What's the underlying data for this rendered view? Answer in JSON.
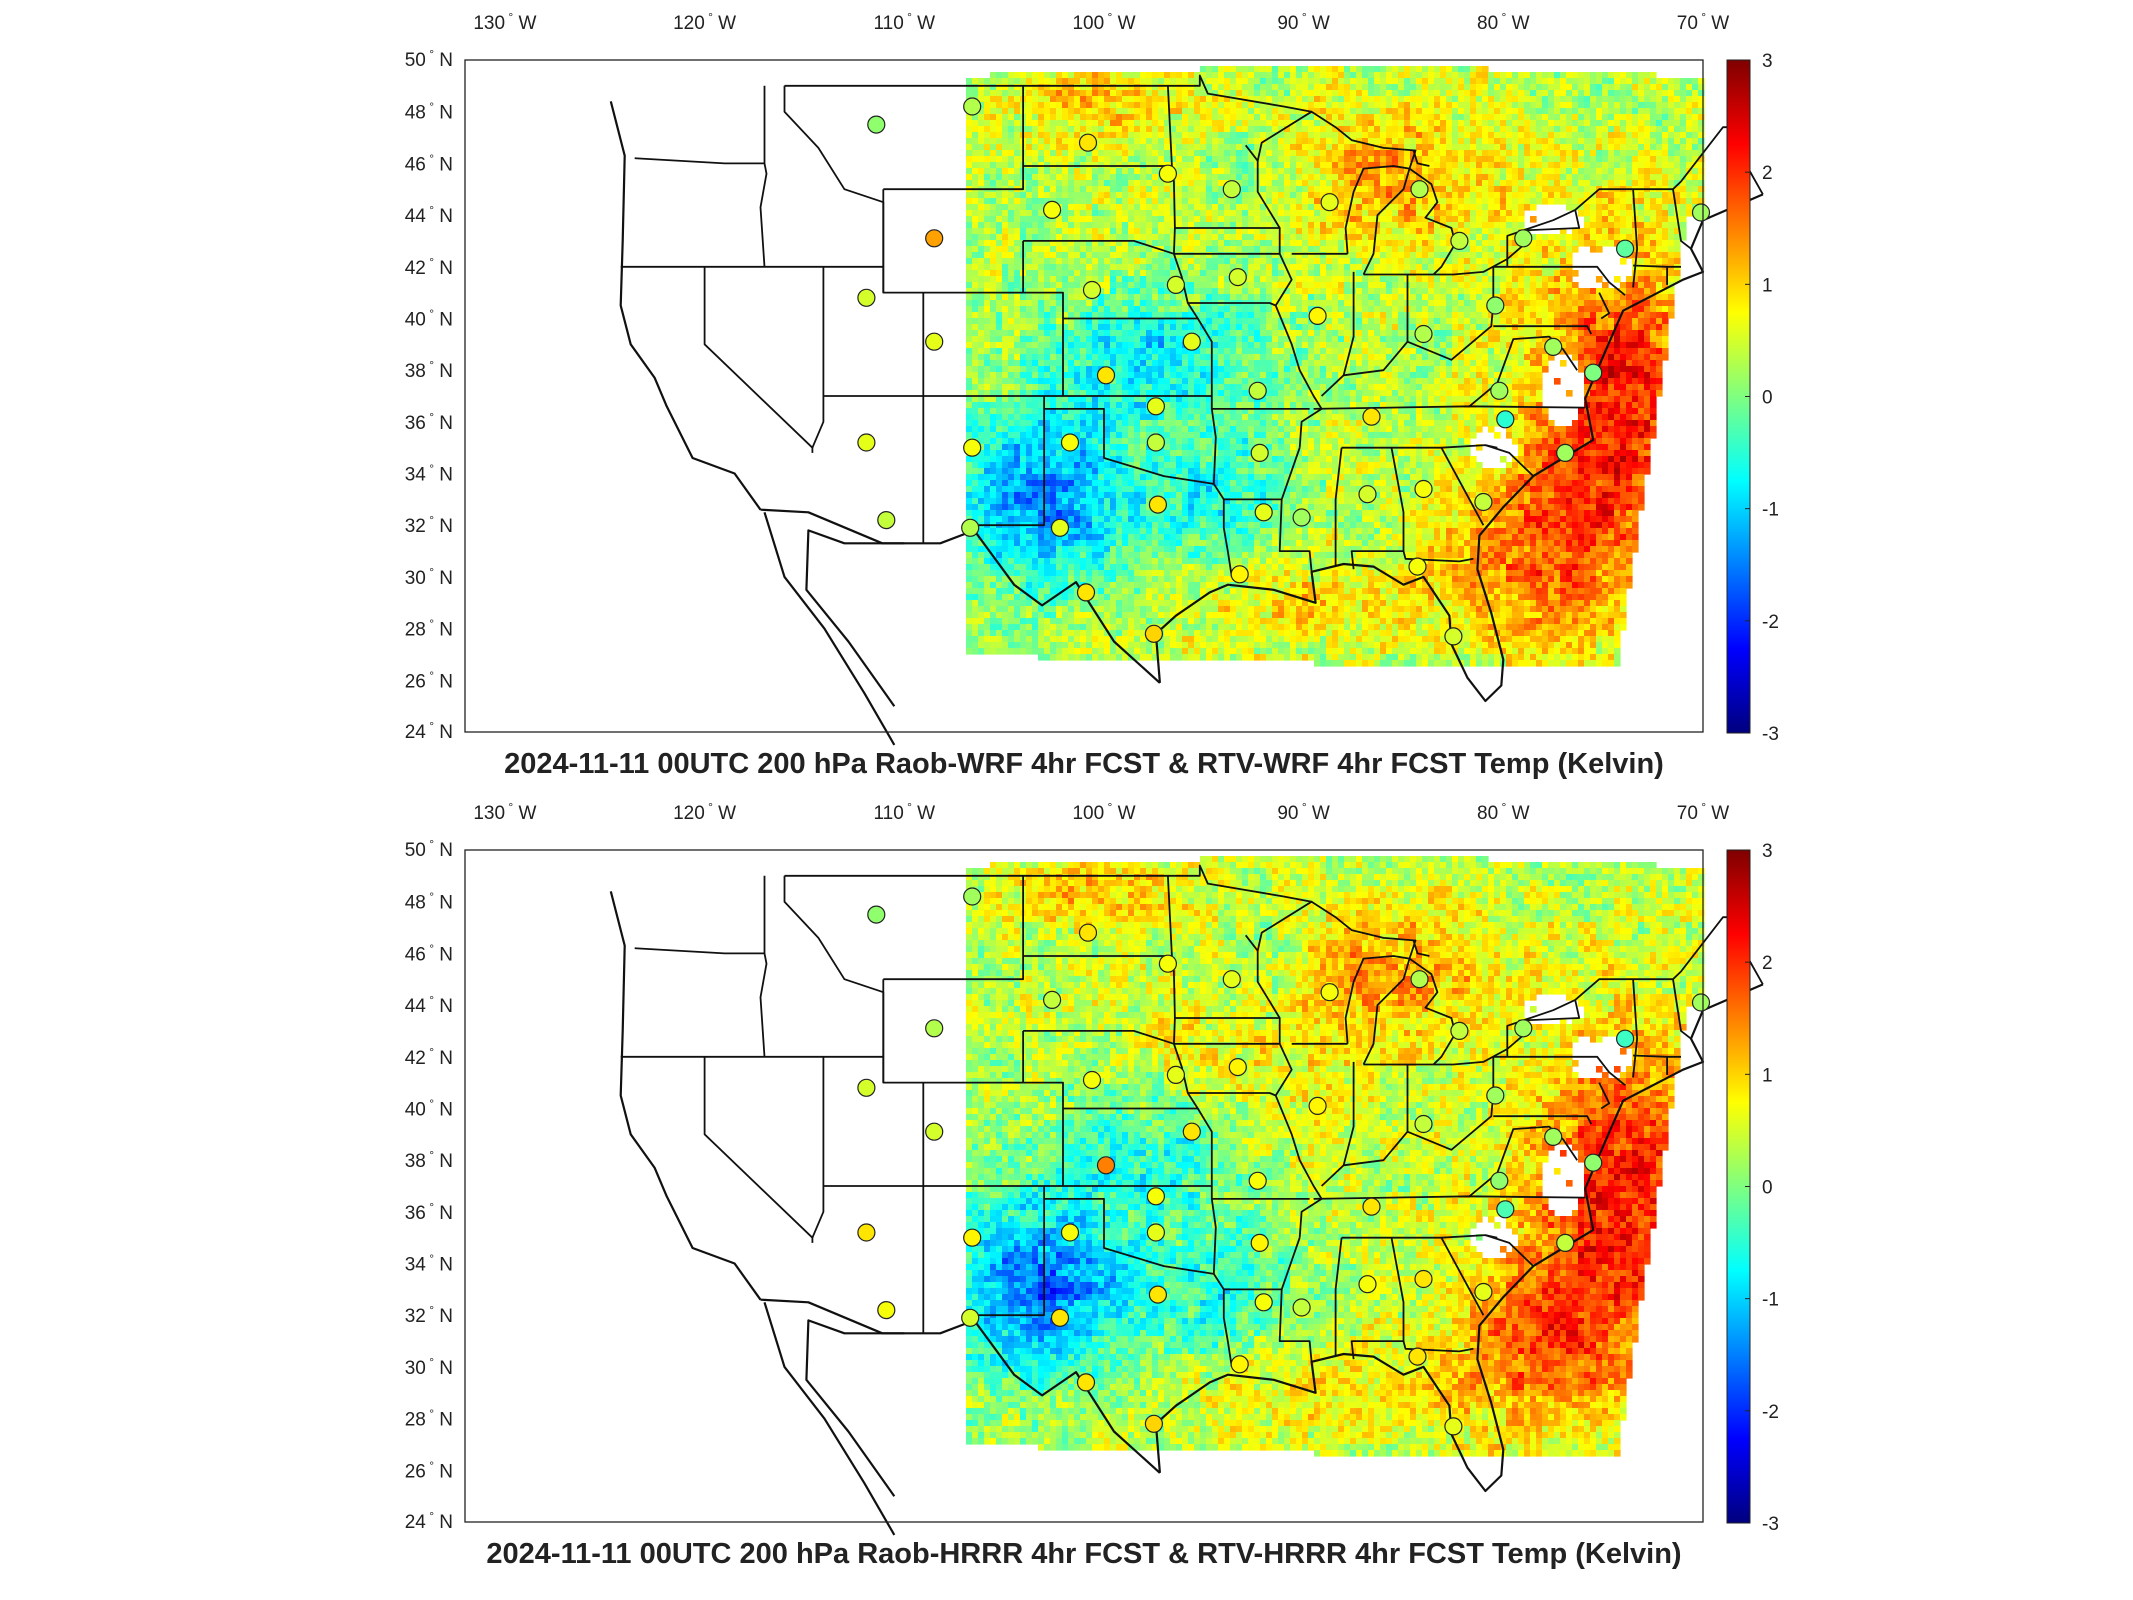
{
  "panels": [
    {
      "title": "2024-11-11 00UTC 200 hPa Raob-WRF 4hr FCST & RTV-WRF 4hr FCST Temp (Kelvin)",
      "lon_ticks": [
        "130",
        "120",
        "110",
        "100",
        "90",
        "80",
        "70"
      ],
      "lon_hemisphere": "W",
      "lat_ticks": [
        "50",
        "48",
        "46",
        "44",
        "42",
        "40",
        "38",
        "36",
        "34",
        "32",
        "30",
        "28",
        "26",
        "24"
      ],
      "lat_hemisphere": "N",
      "degree_symbol": "°",
      "colorbar_ticks": [
        "3",
        "2",
        "1",
        "0",
        "-1",
        "-2",
        "-3"
      ]
    },
    {
      "title": "2024-11-11 00UTC 200 hPa Raob-HRRR 4hr FCST & RTV-HRRR 4hr FCST Temp (Kelvin)",
      "lon_ticks": [
        "130",
        "120",
        "110",
        "100",
        "90",
        "80",
        "70"
      ],
      "lon_hemisphere": "W",
      "lat_ticks": [
        "50",
        "48",
        "46",
        "44",
        "42",
        "40",
        "38",
        "36",
        "34",
        "32",
        "30",
        "28",
        "26",
        "24"
      ],
      "lat_hemisphere": "N",
      "degree_symbol": "°",
      "colorbar_ticks": [
        "3",
        "2",
        "1",
        "0",
        "-1",
        "-2",
        "-3"
      ]
    }
  ],
  "colormap": {
    "name": "jet",
    "range": [
      -3,
      3
    ],
    "stops": [
      "#00007f",
      "#0000ff",
      "#007fff",
      "#00ffff",
      "#7fff7f",
      "#ffff00",
      "#ff7f00",
      "#ff0000",
      "#7f0000"
    ]
  },
  "chart_data": [
    {
      "type": "heatmap",
      "title": "2024-11-11 00UTC 200 hPa Raob-WRF 4hr FCST & RTV-WRF 4hr FCST Temp (Kelvin)",
      "units": "Kelvin",
      "clim": [
        -3,
        3
      ],
      "xlim": [
        -132,
        -70
      ],
      "ylim": [
        24,
        50
      ],
      "raob_stations": [
        {
          "lon": -111.4,
          "lat": 47.5,
          "value": 0.1
        },
        {
          "lon": -106.6,
          "lat": 48.2,
          "value": 0.3
        },
        {
          "lon": -100.8,
          "lat": 46.8,
          "value": 0.9
        },
        {
          "lon": -96.8,
          "lat": 45.6,
          "value": 0.7
        },
        {
          "lon": -93.6,
          "lat": 45.0,
          "value": 0.4
        },
        {
          "lon": -88.7,
          "lat": 44.5,
          "value": 0.6
        },
        {
          "lon": -84.2,
          "lat": 45.0,
          "value": 0.3
        },
        {
          "lon": -82.2,
          "lat": 43.0,
          "value": 0.4
        },
        {
          "lon": -79.0,
          "lat": 43.1,
          "value": 0.2
        },
        {
          "lon": -73.9,
          "lat": 42.7,
          "value": -0.2
        },
        {
          "lon": -70.1,
          "lat": 44.1,
          "value": 0.2
        },
        {
          "lon": -102.6,
          "lat": 44.2,
          "value": 0.7
        },
        {
          "lon": -108.5,
          "lat": 43.1,
          "value": 1.3
        },
        {
          "lon": -111.9,
          "lat": 40.8,
          "value": 0.5
        },
        {
          "lon": -108.5,
          "lat": 39.1,
          "value": 0.6
        },
        {
          "lon": -100.6,
          "lat": 41.1,
          "value": 0.5
        },
        {
          "lon": -96.4,
          "lat": 41.3,
          "value": 0.5
        },
        {
          "lon": -93.3,
          "lat": 41.6,
          "value": 0.5
        },
        {
          "lon": -89.3,
          "lat": 40.1,
          "value": 0.8
        },
        {
          "lon": -84.0,
          "lat": 39.4,
          "value": 0.3
        },
        {
          "lon": -80.4,
          "lat": 40.5,
          "value": 0.1
        },
        {
          "lon": -77.5,
          "lat": 38.9,
          "value": 0.2
        },
        {
          "lon": -75.5,
          "lat": 37.9,
          "value": 0.0
        },
        {
          "lon": -95.6,
          "lat": 39.1,
          "value": 0.6
        },
        {
          "lon": -99.9,
          "lat": 37.8,
          "value": 0.9
        },
        {
          "lon": -97.4,
          "lat": 36.6,
          "value": 0.6
        },
        {
          "lon": -92.3,
          "lat": 37.2,
          "value": 0.4
        },
        {
          "lon": -86.6,
          "lat": 36.2,
          "value": 0.9
        },
        {
          "lon": -80.2,
          "lat": 37.2,
          "value": 0.2
        },
        {
          "lon": -79.9,
          "lat": 36.1,
          "value": -0.5
        },
        {
          "lon": -76.9,
          "lat": 34.8,
          "value": 0.2
        },
        {
          "lon": -106.6,
          "lat": 35.0,
          "value": 0.7
        },
        {
          "lon": -111.9,
          "lat": 35.2,
          "value": 0.6
        },
        {
          "lon": -110.9,
          "lat": 32.2,
          "value": 0.4
        },
        {
          "lon": -106.7,
          "lat": 31.9,
          "value": 0.3
        },
        {
          "lon": -101.7,
          "lat": 35.2,
          "value": 0.7
        },
        {
          "lon": -97.4,
          "lat": 35.2,
          "value": 0.4
        },
        {
          "lon": -92.2,
          "lat": 34.8,
          "value": 0.5
        },
        {
          "lon": -102.2,
          "lat": 31.9,
          "value": 0.6
        },
        {
          "lon": -97.3,
          "lat": 32.8,
          "value": 0.9
        },
        {
          "lon": -92.0,
          "lat": 32.5,
          "value": 0.6
        },
        {
          "lon": -90.1,
          "lat": 32.3,
          "value": 0.2
        },
        {
          "lon": -86.8,
          "lat": 33.2,
          "value": 0.5
        },
        {
          "lon": -84.0,
          "lat": 33.4,
          "value": 0.7
        },
        {
          "lon": -81.0,
          "lat": 32.9,
          "value": 0.4
        },
        {
          "lon": -100.9,
          "lat": 29.4,
          "value": 0.9
        },
        {
          "lon": -97.5,
          "lat": 27.8,
          "value": 1.0
        },
        {
          "lon": -93.2,
          "lat": 30.1,
          "value": 0.8
        },
        {
          "lon": -84.3,
          "lat": 30.4,
          "value": 0.7
        },
        {
          "lon": -82.5,
          "lat": 27.7,
          "value": 0.5
        }
      ]
    },
    {
      "type": "heatmap",
      "title": "2024-11-11 00UTC 200 hPa Raob-HRRR 4hr FCST & RTV-HRRR 4hr FCST Temp (Kelvin)",
      "units": "Kelvin",
      "clim": [
        -3,
        3
      ],
      "xlim": [
        -132,
        -70
      ],
      "ylim": [
        24,
        50
      ],
      "raob_stations": [
        {
          "lon": -111.4,
          "lat": 47.5,
          "value": 0.1
        },
        {
          "lon": -106.6,
          "lat": 48.2,
          "value": 0.2
        },
        {
          "lon": -100.8,
          "lat": 46.8,
          "value": 0.9
        },
        {
          "lon": -96.8,
          "lat": 45.6,
          "value": 0.7
        },
        {
          "lon": -93.6,
          "lat": 45.0,
          "value": 0.6
        },
        {
          "lon": -88.7,
          "lat": 44.5,
          "value": 0.7
        },
        {
          "lon": -84.2,
          "lat": 45.0,
          "value": 0.3
        },
        {
          "lon": -82.2,
          "lat": 43.0,
          "value": 0.4
        },
        {
          "lon": -79.0,
          "lat": 43.1,
          "value": 0.2
        },
        {
          "lon": -73.9,
          "lat": 42.7,
          "value": -0.4
        },
        {
          "lon": -70.1,
          "lat": 44.1,
          "value": 0.2
        },
        {
          "lon": -102.6,
          "lat": 44.2,
          "value": 0.4
        },
        {
          "lon": -108.5,
          "lat": 43.1,
          "value": 0.3
        },
        {
          "lon": -111.9,
          "lat": 40.8,
          "value": 0.5
        },
        {
          "lon": -108.5,
          "lat": 39.1,
          "value": 0.5
        },
        {
          "lon": -100.6,
          "lat": 41.1,
          "value": 0.7
        },
        {
          "lon": -96.4,
          "lat": 41.3,
          "value": 0.6
        },
        {
          "lon": -93.3,
          "lat": 41.6,
          "value": 0.8
        },
        {
          "lon": -89.3,
          "lat": 40.1,
          "value": 0.8
        },
        {
          "lon": -84.0,
          "lat": 39.4,
          "value": 0.4
        },
        {
          "lon": -80.4,
          "lat": 40.5,
          "value": 0.2
        },
        {
          "lon": -77.5,
          "lat": 38.9,
          "value": 0.2
        },
        {
          "lon": -75.5,
          "lat": 37.9,
          "value": 0.1
        },
        {
          "lon": -95.6,
          "lat": 39.1,
          "value": 0.9
        },
        {
          "lon": -99.9,
          "lat": 37.8,
          "value": 1.5
        },
        {
          "lon": -97.4,
          "lat": 36.6,
          "value": 0.7
        },
        {
          "lon": -92.3,
          "lat": 37.2,
          "value": 0.7
        },
        {
          "lon": -86.6,
          "lat": 36.2,
          "value": 0.9
        },
        {
          "lon": -80.2,
          "lat": 37.2,
          "value": 0.1
        },
        {
          "lon": -79.9,
          "lat": 36.1,
          "value": -0.3
        },
        {
          "lon": -76.9,
          "lat": 34.8,
          "value": 0.4
        },
        {
          "lon": -106.6,
          "lat": 35.0,
          "value": 0.8
        },
        {
          "lon": -111.9,
          "lat": 35.2,
          "value": 0.9
        },
        {
          "lon": -110.9,
          "lat": 32.2,
          "value": 0.7
        },
        {
          "lon": -106.7,
          "lat": 31.9,
          "value": 0.5
        },
        {
          "lon": -101.7,
          "lat": 35.2,
          "value": 0.7
        },
        {
          "lon": -97.4,
          "lat": 35.2,
          "value": 0.6
        },
        {
          "lon": -92.2,
          "lat": 34.8,
          "value": 0.8
        },
        {
          "lon": -102.2,
          "lat": 31.9,
          "value": 0.9
        },
        {
          "lon": -97.3,
          "lat": 32.8,
          "value": 0.9
        },
        {
          "lon": -92.0,
          "lat": 32.5,
          "value": 0.7
        },
        {
          "lon": -90.1,
          "lat": 32.3,
          "value": 0.4
        },
        {
          "lon": -86.8,
          "lat": 33.2,
          "value": 0.7
        },
        {
          "lon": -84.0,
          "lat": 33.4,
          "value": 0.9
        },
        {
          "lon": -81.0,
          "lat": 32.9,
          "value": 0.6
        },
        {
          "lon": -100.9,
          "lat": 29.4,
          "value": 0.9
        },
        {
          "lon": -97.5,
          "lat": 27.8,
          "value": 1.0
        },
        {
          "lon": -93.2,
          "lat": 30.1,
          "value": 0.8
        },
        {
          "lon": -84.3,
          "lat": 30.4,
          "value": 0.9
        },
        {
          "lon": -82.5,
          "lat": 27.7,
          "value": 0.6
        }
      ]
    }
  ]
}
